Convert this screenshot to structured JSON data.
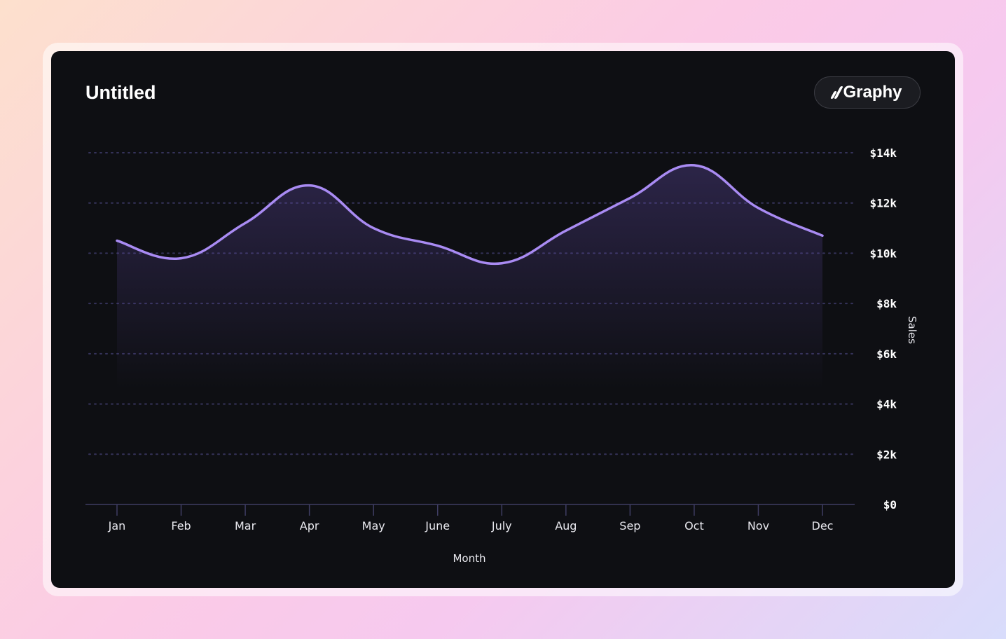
{
  "card": {
    "title": "Untitled",
    "brand_label": "Graphy"
  },
  "colors": {
    "line": "#a98bf3",
    "grid": "#35335a",
    "card_bg": "#0e0f13"
  },
  "chart_data": {
    "type": "area",
    "title": "Untitled",
    "xlabel": "Month",
    "ylabel": "Sales",
    "categories": [
      "Jan",
      "Feb",
      "Mar",
      "Apr",
      "May",
      "June",
      "July",
      "Aug",
      "Sep",
      "Oct",
      "Nov",
      "Dec"
    ],
    "series": [
      {
        "values": [
          10500,
          9800,
          11200,
          12700,
          11000,
          10300,
          9600,
          10900,
          12200,
          13500,
          11800,
          10700
        ]
      }
    ],
    "ylim": [
      0,
      14000
    ],
    "yticks": [
      0,
      2000,
      4000,
      6000,
      8000,
      10000,
      12000,
      14000
    ],
    "ytick_labels": [
      "$0",
      "$2k",
      "$4k",
      "$6k",
      "$8k",
      "$10k",
      "$12k",
      "$14k"
    ],
    "y_axis_position": "right",
    "grid": true,
    "legend": "none"
  }
}
